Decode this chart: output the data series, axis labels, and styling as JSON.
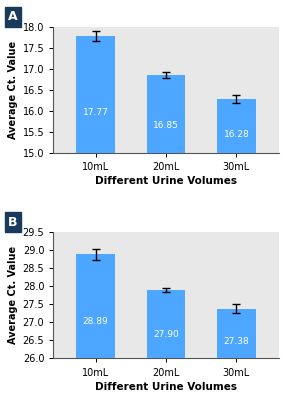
{
  "panel_A": {
    "categories": [
      "10mL",
      "20mL",
      "30mL"
    ],
    "values": [
      17.77,
      16.85,
      16.28
    ],
    "errors": [
      0.12,
      0.08,
      0.1
    ],
    "bar_color": "#4da6ff",
    "ylim": [
      15.0,
      18.0
    ],
    "yticks": [
      15.0,
      15.5,
      16.0,
      16.5,
      17.0,
      17.5,
      18.0
    ],
    "ylabel": "Average Ct. Value",
    "xlabel": "Different Urine Volumes",
    "label": "A"
  },
  "panel_B": {
    "categories": [
      "10mL",
      "20mL",
      "30mL"
    ],
    "values": [
      28.89,
      27.9,
      27.38
    ],
    "errors": [
      0.15,
      0.05,
      0.12
    ],
    "bar_color": "#4da6ff",
    "ylim": [
      26.0,
      29.5
    ],
    "yticks": [
      26.0,
      26.5,
      27.0,
      27.5,
      28.0,
      28.5,
      29.0,
      29.5
    ],
    "ylabel": "Average Ct. Value",
    "xlabel": "Different Urine Volumes",
    "label": "B"
  },
  "label_bg_color": "#1a3a5c",
  "label_text_color": "#ffffff",
  "bar_text_color": "#ffffff",
  "background_color": "#e8e8e8",
  "figure_bg": "#ffffff",
  "outer_bg": "#d8d8d8"
}
